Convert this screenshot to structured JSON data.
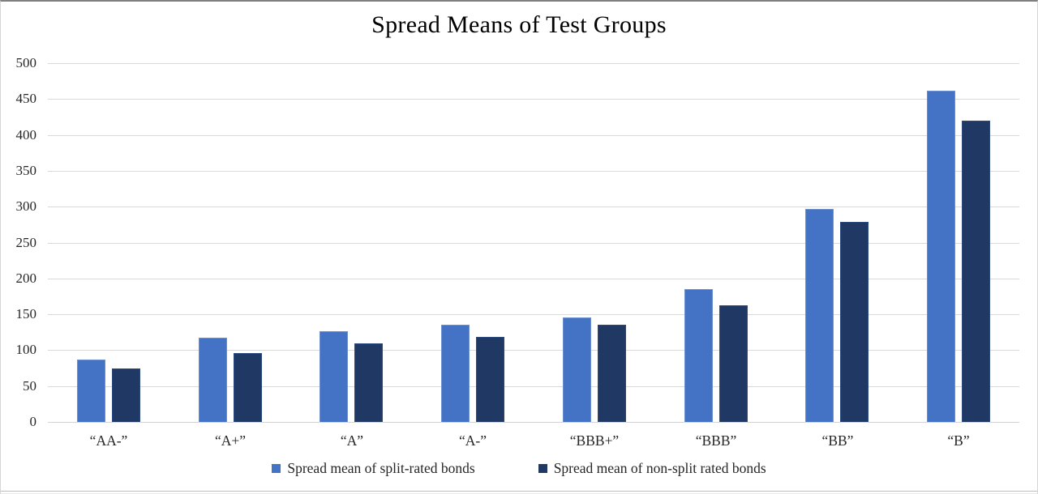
{
  "chart_data": {
    "type": "bar",
    "title": "Spread Means of Test Groups",
    "categories": [
      "“AA-”",
      "“A+”",
      "“A”",
      "“A-”",
      "“BBB+”",
      "“BBB”",
      "“BB”",
      "“B”"
    ],
    "series": [
      {
        "name": "Spread mean of split-rated bonds",
        "color": "#4472C4",
        "border_color": "#6D90D1",
        "values": [
          87,
          117,
          126,
          135,
          146,
          185,
          297,
          462
        ]
      },
      {
        "name": "Spread mean of non-split rated bonds",
        "color": "#203864",
        "border_color": "#2A4A80",
        "values": [
          75,
          96,
          110,
          119,
          135,
          162,
          279,
          420
        ]
      }
    ],
    "xlabel": "",
    "ylabel": "",
    "ylim": [
      0,
      500
    ],
    "yticks": [
      0,
      50,
      100,
      150,
      200,
      250,
      300,
      350,
      400,
      450,
      500
    ],
    "grid": "horizontal",
    "gridline_color": "#d9d9d9",
    "axis_line_color": "#d3d3d3",
    "tick_label_color": "#262626",
    "title_color": "#000000",
    "legend_position": "bottom"
  }
}
